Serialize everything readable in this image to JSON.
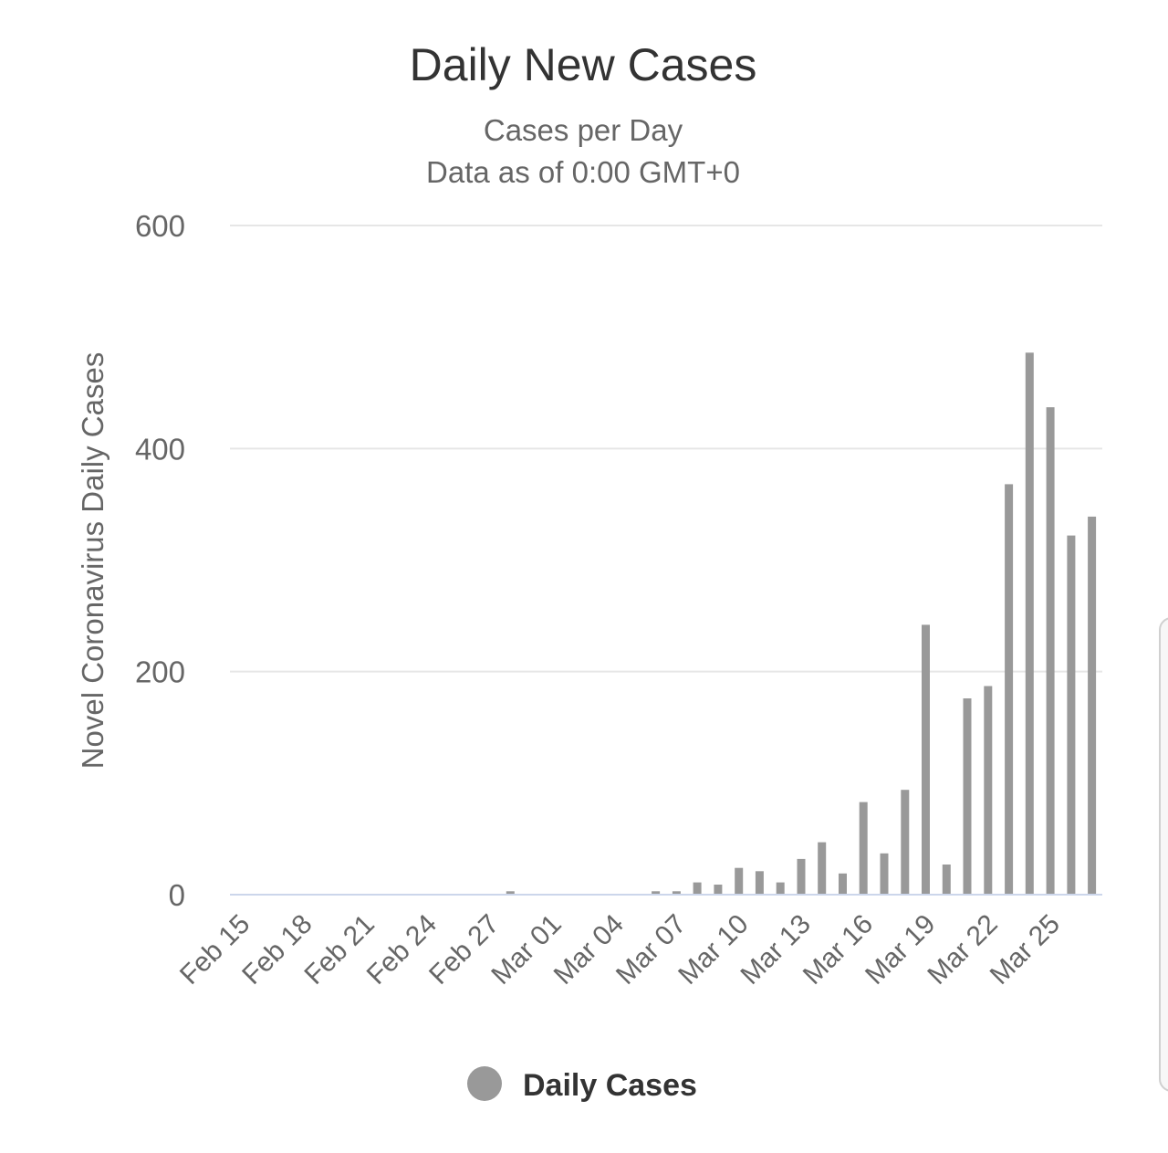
{
  "chart_data": {
    "type": "bar",
    "title": "Daily New Cases",
    "subtitle": [
      "Cases per Day",
      "Data as of 0:00 GMT+0"
    ],
    "ylabel": "Novel Coronavirus Daily Cases",
    "xlabel": "",
    "ylim": [
      0,
      600
    ],
    "yticks": [
      0,
      200,
      400,
      600
    ],
    "categories": [
      "Feb 15",
      "Feb 16",
      "Feb 17",
      "Feb 18",
      "Feb 19",
      "Feb 20",
      "Feb 21",
      "Feb 22",
      "Feb 23",
      "Feb 24",
      "Feb 25",
      "Feb 26",
      "Feb 27",
      "Feb 28",
      "Feb 29",
      "Mar 01",
      "Mar 02",
      "Mar 03",
      "Mar 04",
      "Mar 05",
      "Mar 06",
      "Mar 07",
      "Mar 08",
      "Mar 09",
      "Mar 10",
      "Mar 11",
      "Mar 12",
      "Mar 13",
      "Mar 14",
      "Mar 15",
      "Mar 16",
      "Mar 17",
      "Mar 18",
      "Mar 19",
      "Mar 20",
      "Mar 21",
      "Mar 22",
      "Mar 23",
      "Mar 24",
      "Mar 25",
      "Mar 26",
      "Mar 27"
    ],
    "xtick_labels": [
      "Feb 15",
      "Feb 18",
      "Feb 21",
      "Feb 24",
      "Feb 27",
      "Mar 01",
      "Mar 04",
      "Mar 07",
      "Mar 10",
      "Mar 13",
      "Mar 16",
      "Mar 19",
      "Mar 22",
      "Mar 25"
    ],
    "series": [
      {
        "name": "Daily Cases",
        "color": "#999999",
        "values": [
          0,
          0,
          0,
          0,
          0,
          0,
          0,
          0,
          0,
          0,
          0,
          0,
          0,
          3,
          0,
          0,
          0,
          0,
          0,
          0,
          3,
          3,
          11,
          9,
          24,
          21,
          11,
          32,
          47,
          19,
          83,
          37,
          94,
          242,
          27,
          176,
          187,
          368,
          486,
          437,
          322,
          339
        ]
      }
    ],
    "grid": true,
    "legend": {
      "position": "bottom-center",
      "label": "Daily Cases"
    }
  }
}
